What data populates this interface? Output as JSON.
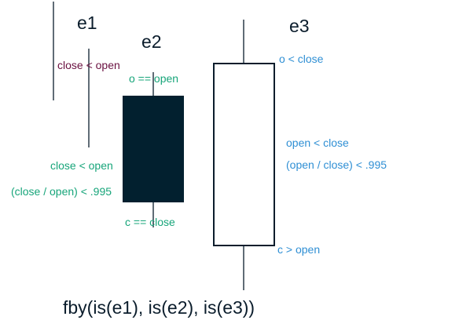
{
  "colors": {
    "line": "#0b1d2c",
    "bearish_fill": "#02202f",
    "bullish_fill": "#ffffff",
    "label_e1": "#6a1040",
    "label_e2": "#17a57a",
    "label_e3": "#2f8fd4"
  },
  "headings": {
    "e1": "e1",
    "e2": "e2",
    "e3": "e3"
  },
  "labels": {
    "e1_close_lt_open": "close < open",
    "e2_o_eq_open": "o == open",
    "e2_close_lt_open": "close < open",
    "e2_ratio": "(close / open) < .995",
    "e2_c_eq_close": "c == close",
    "e3_o_lt_close": "o < close",
    "e3_open_lt_close": "open < close",
    "e3_ratio": "(open / close) < .995",
    "e3_c_gt_open": "c > open"
  },
  "formula": "fby(is(e1), is(e2), is(e3))"
}
